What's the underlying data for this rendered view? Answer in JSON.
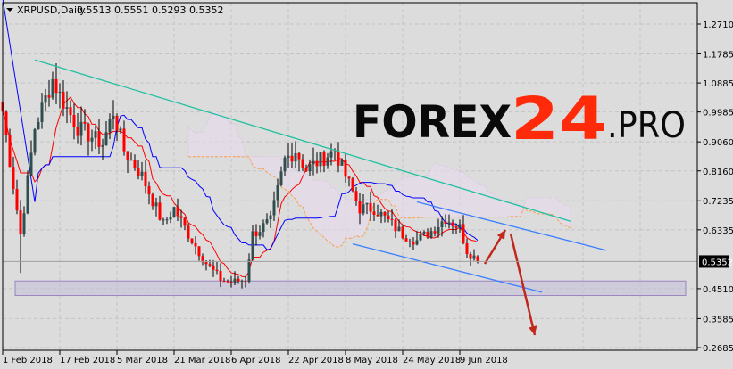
{
  "header": {
    "symbol": "XRPUSD,Daily",
    "ohlc": "0.5513 0.5551 0.5293 0.5352"
  },
  "logo": {
    "text1": "FOREX",
    "text2": "24",
    "text3": ".PRO",
    "color_main": "#0a0a0a",
    "color_accent": "#ff2a0a"
  },
  "chart_data": {
    "type": "candlestick",
    "title": "XRPUSD,Daily",
    "y_ticks": [
      "1.2710",
      "1.1785",
      "1.0885",
      "0.9985",
      "0.9060",
      "0.8160",
      "0.7235",
      "0.6335",
      "0.4510",
      "0.3585",
      "0.2685"
    ],
    "ylim": [
      0.2685,
      1.271
    ],
    "x_ticks": [
      "1 Feb 2018",
      "17 Feb 2018",
      "5 Mar 2018",
      "21 Mar 2018",
      "6 Apr 2018",
      "22 Apr 2018",
      "8 May 2018",
      "24 May 2018",
      "9 Jun 2018"
    ],
    "last_price": "0.5352",
    "last_candle": {
      "open": 0.5513,
      "high": 0.5551,
      "low": 0.5293,
      "close": 0.5352
    },
    "close_path": [
      [
        "2018-02-01",
        1.0
      ],
      [
        "2018-02-06",
        0.62
      ],
      [
        "2018-02-10",
        0.95
      ],
      [
        "2018-02-15",
        1.1
      ],
      [
        "2018-02-17",
        1.05
      ],
      [
        "2018-02-22",
        0.95
      ],
      [
        "2018-03-01",
        0.9
      ],
      [
        "2018-03-04",
        1.0
      ],
      [
        "2018-03-07",
        0.88
      ],
      [
        "2018-03-12",
        0.8
      ],
      [
        "2018-03-18",
        0.65
      ],
      [
        "2018-03-21",
        0.7
      ],
      [
        "2018-03-25",
        0.62
      ],
      [
        "2018-03-30",
        0.53
      ],
      [
        "2018-04-03",
        0.48
      ],
      [
        "2018-04-06",
        0.47
      ],
      [
        "2018-04-10",
        0.48
      ],
      [
        "2018-04-12",
        0.62
      ],
      [
        "2018-04-17",
        0.66
      ],
      [
        "2018-04-21",
        0.85
      ],
      [
        "2018-04-24",
        0.88
      ],
      [
        "2018-04-27",
        0.82
      ],
      [
        "2018-05-01",
        0.85
      ],
      [
        "2018-05-05",
        0.88
      ],
      [
        "2018-05-08",
        0.8
      ],
      [
        "2018-05-12",
        0.7
      ],
      [
        "2018-05-16",
        0.7
      ],
      [
        "2018-05-20",
        0.66
      ],
      [
        "2018-05-24",
        0.62
      ],
      [
        "2018-05-28",
        0.6
      ],
      [
        "2018-06-01",
        0.63
      ],
      [
        "2018-06-05",
        0.67
      ],
      [
        "2018-06-09",
        0.64
      ],
      [
        "2018-06-11",
        0.57
      ],
      [
        "2018-06-13",
        0.55
      ],
      [
        "2018-06-14",
        0.5352
      ]
    ],
    "support_zone": [
      0.43,
      0.475
    ],
    "trendline": [
      [
        "2018-02-10",
        1.16
      ],
      [
        "2018-07-10",
        0.66
      ]
    ],
    "channel_upper": [
      [
        "2018-05-28",
        0.72
      ],
      [
        "2018-07-20",
        0.57
      ]
    ],
    "channel_lower": [
      [
        "2018-05-10",
        0.59
      ],
      [
        "2018-07-02",
        0.44
      ]
    ],
    "colors": {
      "bull": "#2f4f4f",
      "bear": "#ff0000",
      "tenkan": "#ff0000",
      "kijun": "#0000ff",
      "chikou": "#ffa040",
      "trend": "#20c0a0",
      "channel": "#3a7fff",
      "arrow": "#c0281c",
      "zone": "#c8c4d8"
    },
    "grid": true
  }
}
